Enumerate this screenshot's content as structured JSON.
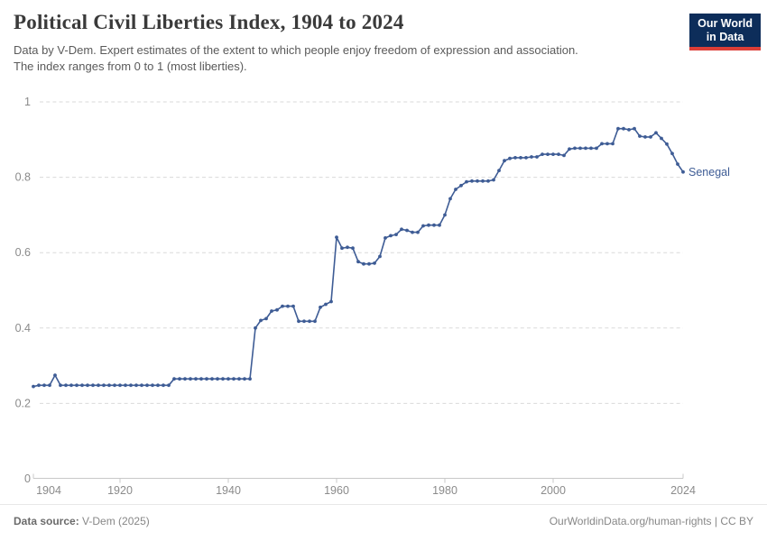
{
  "header": {
    "title": "Political Civil Liberties Index, 1904 to 2024",
    "subtitle_line1": "Data by V-Dem. Expert estimates of the extent to which people enjoy freedom of expression and association.",
    "subtitle_line2": "The index ranges from 0 to 1 (most liberties)."
  },
  "logo": {
    "line1": "Our World",
    "line2": "in Data",
    "bg_color": "#0d2d5a",
    "accent_color": "#dc3e37"
  },
  "chart_data": {
    "type": "line",
    "title": "Political Civil Liberties Index, 1904 to 2024",
    "entity_label": "Senegal",
    "line_color": "#3E5C95",
    "grid": "horizontal-dashed",
    "xlim": [
      1904,
      2024
    ],
    "ylim": [
      0,
      1
    ],
    "xticks": [
      1904,
      1920,
      1940,
      1960,
      1980,
      2000,
      2024
    ],
    "yticks": [
      0,
      0.2,
      0.4,
      0.6,
      0.8,
      1
    ],
    "series": [
      {
        "name": "Senegal",
        "x": [
          1904,
          1905,
          1906,
          1907,
          1908,
          1909,
          1910,
          1911,
          1912,
          1913,
          1914,
          1915,
          1916,
          1917,
          1918,
          1919,
          1920,
          1921,
          1922,
          1923,
          1924,
          1925,
          1926,
          1927,
          1928,
          1929,
          1930,
          1931,
          1932,
          1933,
          1934,
          1935,
          1936,
          1937,
          1938,
          1939,
          1940,
          1941,
          1942,
          1943,
          1944,
          1945,
          1946,
          1947,
          1948,
          1949,
          1950,
          1951,
          1952,
          1953,
          1954,
          1955,
          1956,
          1957,
          1958,
          1959,
          1960,
          1961,
          1962,
          1963,
          1964,
          1965,
          1966,
          1967,
          1968,
          1969,
          1970,
          1971,
          1972,
          1973,
          1974,
          1975,
          1976,
          1977,
          1978,
          1979,
          1980,
          1981,
          1982,
          1983,
          1984,
          1985,
          1986,
          1987,
          1988,
          1989,
          1990,
          1991,
          1992,
          1993,
          1994,
          1995,
          1996,
          1997,
          1998,
          1999,
          2000,
          2001,
          2002,
          2003,
          2004,
          2005,
          2006,
          2007,
          2008,
          2009,
          2010,
          2011,
          2012,
          2013,
          2014,
          2015,
          2016,
          2017,
          2018,
          2019,
          2020,
          2021,
          2022,
          2023,
          2024
        ],
        "values": [
          0.245,
          0.248,
          0.248,
          0.248,
          0.275,
          0.248,
          0.248,
          0.248,
          0.248,
          0.248,
          0.248,
          0.248,
          0.248,
          0.248,
          0.248,
          0.248,
          0.248,
          0.248,
          0.248,
          0.248,
          0.248,
          0.248,
          0.248,
          0.248,
          0.248,
          0.248,
          0.265,
          0.265,
          0.265,
          0.265,
          0.265,
          0.265,
          0.265,
          0.265,
          0.265,
          0.265,
          0.265,
          0.265,
          0.265,
          0.265,
          0.265,
          0.4,
          0.42,
          0.425,
          0.445,
          0.448,
          0.458,
          0.458,
          0.458,
          0.418,
          0.418,
          0.418,
          0.418,
          0.455,
          0.463,
          0.47,
          0.641,
          0.612,
          0.614,
          0.612,
          0.576,
          0.57,
          0.57,
          0.572,
          0.59,
          0.639,
          0.645,
          0.648,
          0.662,
          0.659,
          0.654,
          0.654,
          0.671,
          0.673,
          0.673,
          0.673,
          0.7,
          0.743,
          0.768,
          0.778,
          0.788,
          0.79,
          0.79,
          0.79,
          0.79,
          0.793,
          0.818,
          0.844,
          0.85,
          0.852,
          0.852,
          0.852,
          0.854,
          0.854,
          0.861,
          0.861,
          0.861,
          0.861,
          0.858,
          0.875,
          0.877,
          0.877,
          0.877,
          0.877,
          0.877,
          0.889,
          0.889,
          0.889,
          0.929,
          0.929,
          0.926,
          0.929,
          0.909,
          0.907,
          0.907,
          0.918,
          0.903,
          0.888,
          0.863,
          0.835,
          0.814
        ]
      }
    ]
  },
  "footer": {
    "source_label": "Data source:",
    "source_value": "V-Dem (2025)",
    "right_text": "OurWorldinData.org/human-rights | CC BY"
  }
}
